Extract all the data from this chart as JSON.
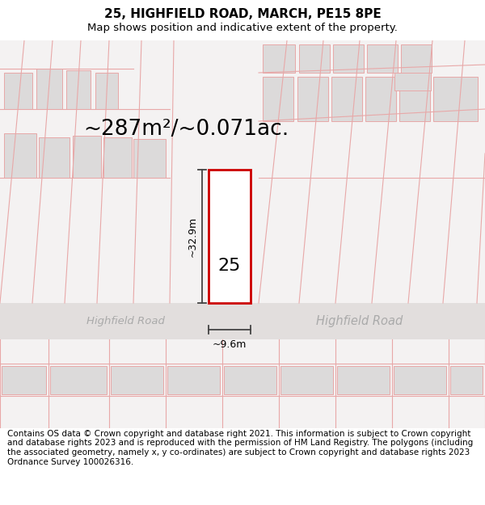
{
  "title": "25, HIGHFIELD ROAD, MARCH, PE15 8PE",
  "subtitle": "Map shows position and indicative extent of the property.",
  "area_label": "~287m²/~0.071ac.",
  "property_number": "25",
  "dim_height": "~32.9m",
  "dim_width": "~9.6m",
  "road_label_left": "Highfield Road",
  "road_label_right": "Highfield Road",
  "copyright_text": "Contains OS data © Crown copyright and database right 2021. This information is subject to Crown copyright and database rights 2023 and is reproduced with the permission of HM Land Registry. The polygons (including the associated geometry, namely x, y co-ordinates) are subject to Crown copyright and database rights 2023 Ordnance Survey 100026316.",
  "map_bg": "#f4f2f2",
  "red_line": "#e8a8a8",
  "property_red": "#cc0000",
  "building_fill": "#dcdada",
  "road_bg": "#e8e4e2",
  "dim_line_color": "#444444",
  "road_text_color": "#aaaaaa",
  "title_fontsize": 11,
  "subtitle_fontsize": 9.5,
  "area_fontsize": 19,
  "number_fontsize": 16,
  "dim_fontsize": 9,
  "road_fontsize": 9.5,
  "copyright_fontsize": 7.5
}
